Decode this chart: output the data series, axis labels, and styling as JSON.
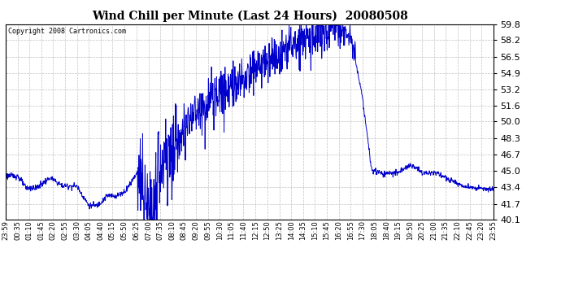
{
  "title": "Wind Chill per Minute (Last 24 Hours)  20080508",
  "copyright": "Copyright 2008 Cartronics.com",
  "line_color": "#0000CC",
  "background_color": "#ffffff",
  "grid_color": "#bbbbbb",
  "y_min": 40.1,
  "y_max": 59.8,
  "y_ticks": [
    40.1,
    41.7,
    43.4,
    45.0,
    46.7,
    48.3,
    50.0,
    51.6,
    53.2,
    54.9,
    56.5,
    58.2,
    59.8
  ],
  "x_tick_labels": [
    "23:59",
    "00:35",
    "01:10",
    "01:45",
    "02:20",
    "02:55",
    "03:30",
    "04:05",
    "04:40",
    "05:15",
    "05:50",
    "06:25",
    "07:00",
    "07:35",
    "08:10",
    "08:45",
    "09:20",
    "09:55",
    "10:30",
    "11:05",
    "11:40",
    "12:15",
    "12:50",
    "13:25",
    "14:00",
    "14:35",
    "15:10",
    "15:45",
    "16:20",
    "16:55",
    "17:30",
    "18:05",
    "18:40",
    "19:15",
    "19:50",
    "20:25",
    "21:00",
    "21:35",
    "22:10",
    "22:45",
    "23:20",
    "23:55"
  ],
  "figsize": [
    6.9,
    3.75
  ],
  "dpi": 100
}
